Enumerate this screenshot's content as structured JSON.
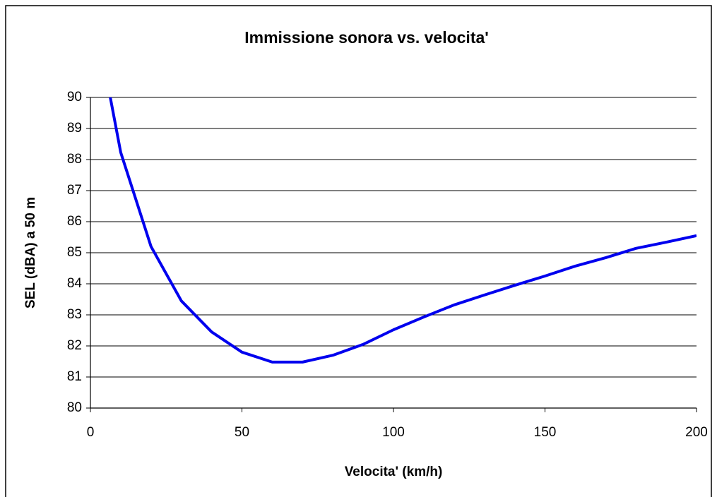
{
  "chart_data": {
    "type": "line",
    "title": "Immissione sonora vs. velocita'",
    "x_label": "Velocita' (km/h)",
    "y_label": "SEL (dBA) a 50 m",
    "x": [
      5,
      10,
      20,
      30,
      40,
      50,
      60,
      70,
      80,
      90,
      100,
      110,
      120,
      130,
      140,
      150,
      160,
      170,
      180,
      190,
      200
    ],
    "series": [
      {
        "name": "SEL",
        "color": "#0000ee",
        "values": [
          90.8,
          88.23,
          85.2,
          83.45,
          82.45,
          81.8,
          81.48,
          81.48,
          81.7,
          82.05,
          82.52,
          82.93,
          83.32,
          83.64,
          83.95,
          84.25,
          84.57,
          84.84,
          85.14,
          85.34,
          85.55
        ]
      }
    ],
    "xlim": [
      0,
      200
    ],
    "xticks": [
      0,
      50,
      100,
      150,
      200
    ],
    "ylim": [
      80,
      90
    ],
    "yticks": [
      80,
      81,
      82,
      83,
      84,
      85,
      86,
      87,
      88,
      89,
      90
    ],
    "grid": true
  }
}
